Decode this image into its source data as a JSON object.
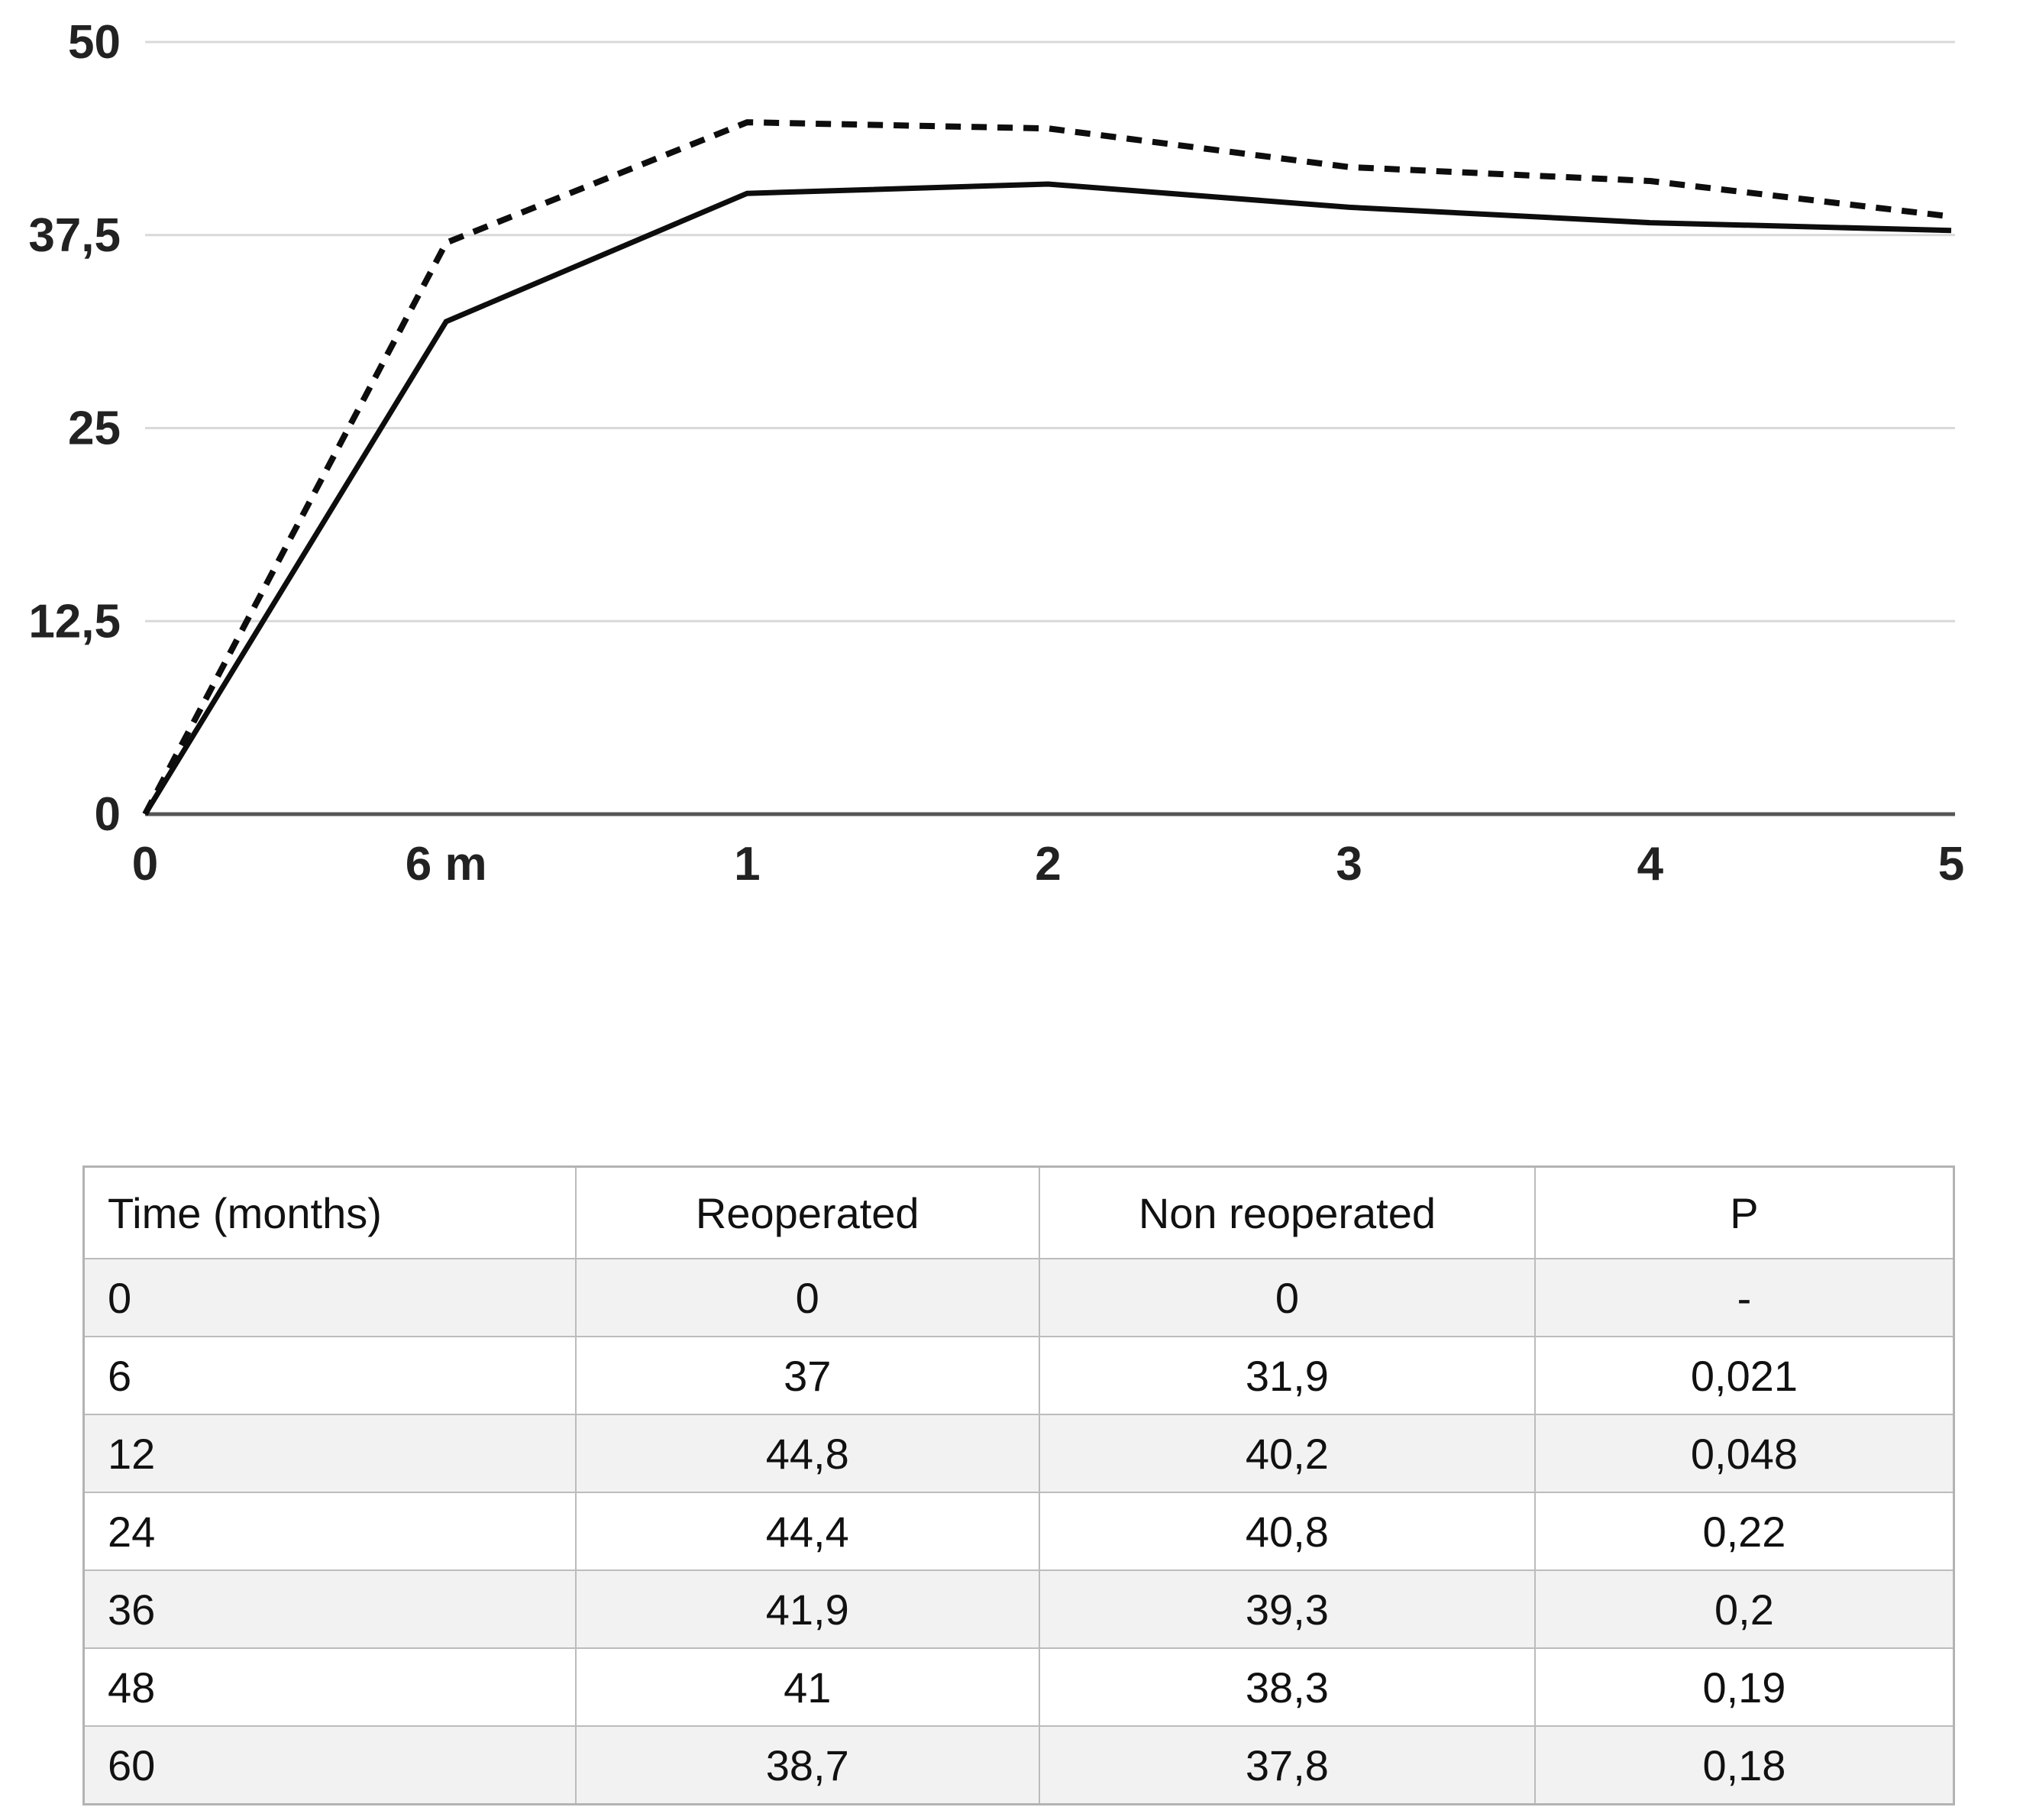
{
  "chart_data": {
    "type": "line",
    "title": "",
    "xlabel": "",
    "ylabel": "",
    "ylim": [
      0,
      50
    ],
    "grid": true,
    "legend_position": "none",
    "x_tick_labels": [
      "0",
      "6 m",
      "1",
      "2",
      "3",
      "4",
      "5"
    ],
    "y_ticks": [
      0,
      12.5,
      25,
      37.5,
      50
    ],
    "y_tick_labels": [
      "0",
      "12,5",
      "25",
      "37,5",
      "50"
    ],
    "x": [
      0,
      1,
      2,
      3,
      4,
      5,
      6
    ],
    "series": [
      {
        "name": "Reoperated",
        "style": "dashed",
        "values": [
          0,
          37,
          44.8,
          44.4,
          41.9,
          41,
          38.7
        ]
      },
      {
        "name": "Non reoperated",
        "style": "solid",
        "values": [
          0,
          31.9,
          40.2,
          40.8,
          39.3,
          38.3,
          37.8
        ]
      }
    ],
    "line_color": "#0d0d0d",
    "gridline_color": "#d9d9d9",
    "axis_color": "#555555"
  },
  "table": {
    "columns": [
      "Time (months)",
      "Reoperated",
      "Non reoperated",
      "P"
    ],
    "column_widths_pct": [
      26.3,
      24.8,
      26.5,
      22.4
    ],
    "rows": [
      [
        "0",
        "0",
        "0",
        "-"
      ],
      [
        "6",
        "37",
        "31,9",
        "0,021"
      ],
      [
        "12",
        "44,8",
        "40,2",
        "0,048"
      ],
      [
        "24",
        "44,4",
        "40,8",
        "0,22"
      ],
      [
        "36",
        "41,9",
        "39,3",
        "0,2"
      ],
      [
        "48",
        "41",
        "38,3",
        "0,19"
      ],
      [
        "60",
        "38,7",
        "37,8",
        "0,18"
      ]
    ],
    "row_shading": [
      "shaded",
      "plain",
      "shaded",
      "plain",
      "shaded",
      "plain",
      "shaded"
    ],
    "shaded_color": "#f2f2f2"
  }
}
